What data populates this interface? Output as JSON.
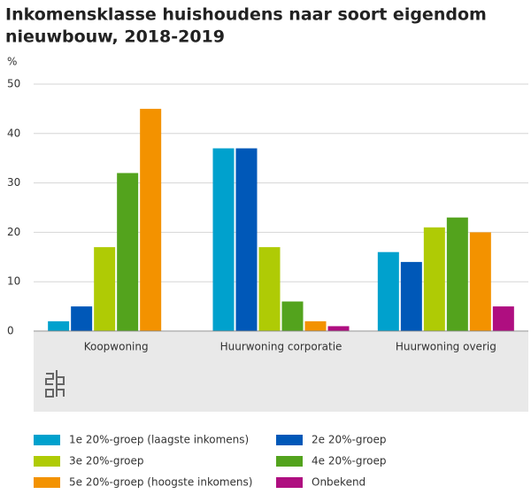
{
  "chart_data": {
    "type": "bar",
    "title": "Inkomensklasse huishoudens naar soort eigendom",
    "subtitle": "nieuwbouw, 2018-2019",
    "y_label": "%",
    "categories": [
      "Koopwoning",
      "Huurwoning corporatie",
      "Huurwoning overig"
    ],
    "series": [
      {
        "name": "1e 20%-groep (laagste inkomens)",
        "color": "#00a1cd",
        "values": [
          2,
          37,
          16
        ]
      },
      {
        "name": "2e 20%-groep",
        "color": "#0058b8",
        "values": [
          5,
          37,
          14
        ]
      },
      {
        "name": "3e 20%-groep",
        "color": "#afcb05",
        "values": [
          17,
          17,
          21
        ]
      },
      {
        "name": "4e 20%-groep",
        "color": "#53a31d",
        "values": [
          32,
          6,
          23
        ]
      },
      {
        "name": "5e 20%-groep (hoogste inkomens)",
        "color": "#f39200",
        "values": [
          45,
          2,
          20
        ]
      },
      {
        "name": "Onbekend",
        "color": "#af0e80",
        "values": [
          0,
          1,
          5
        ]
      }
    ],
    "ylim": [
      0,
      50
    ],
    "yticks": [
      0,
      10,
      20,
      30,
      40,
      50
    ],
    "grid": true
  }
}
